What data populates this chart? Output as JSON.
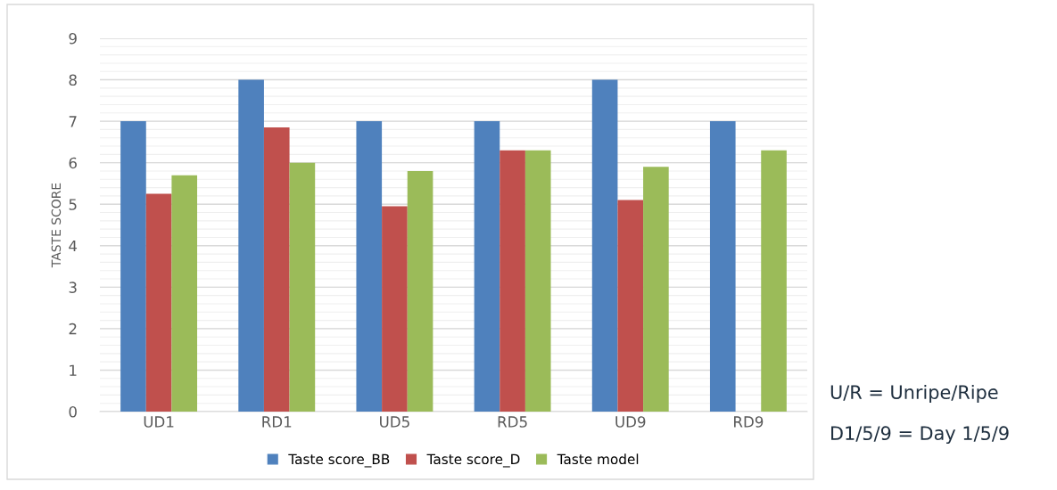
{
  "chart_data": {
    "type": "bar",
    "ylabel": "TASTE SCORE",
    "categories": [
      "UD1",
      "RD1",
      "UD5",
      "RD5",
      "UD9",
      "RD9"
    ],
    "series": [
      {
        "name": "Taste score_BB",
        "color": "#4f81bd",
        "values": [
          7,
          8,
          7,
          7,
          8,
          7
        ]
      },
      {
        "name": "Taste score_D",
        "color": "#c0504d",
        "values": [
          5.25,
          6.85,
          4.95,
          6.3,
          5.1,
          null
        ]
      },
      {
        "name": "Taste model",
        "color": "#9bbb59",
        "values": [
          5.7,
          6.0,
          5.8,
          6.3,
          5.9,
          6.3
        ]
      }
    ],
    "ylim": [
      0,
      9
    ],
    "yticks": [
      0,
      1,
      2,
      3,
      4,
      5,
      6,
      7,
      8,
      9
    ],
    "grid": "y",
    "legend": "bottom",
    "annotations": [
      "U/R = Unripe/Ripe",
      "D1/5/9 = Day 1/5/9"
    ]
  }
}
